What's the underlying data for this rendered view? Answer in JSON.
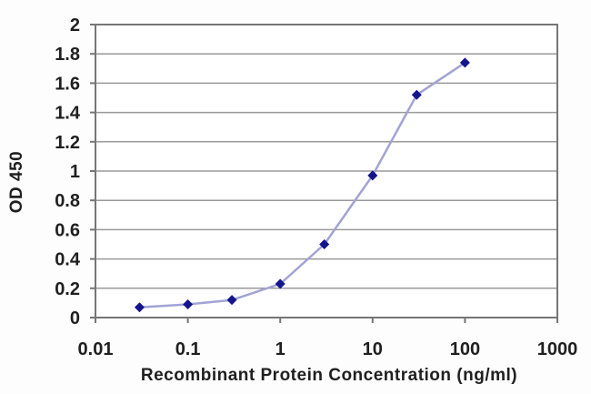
{
  "chart_data": {
    "type": "line",
    "xlabel": "Recombinant Protein Concentration (ng/ml)",
    "ylabel": "OD 450",
    "x_scale": "log",
    "y_scale": "linear",
    "x": [
      0.03,
      0.1,
      0.3,
      1,
      3,
      10,
      30,
      100
    ],
    "y": [
      0.07,
      0.09,
      0.12,
      0.23,
      0.5,
      0.97,
      1.52,
      1.74
    ],
    "xlim": [
      0.01,
      1000
    ],
    "ylim": [
      0,
      2
    ],
    "x_ticks": [
      0.01,
      0.1,
      1,
      10,
      100,
      1000
    ],
    "x_tick_labels": [
      "0.01",
      "0.1",
      "1",
      "10",
      "100",
      "1000"
    ],
    "y_ticks": [
      0,
      0.2,
      0.4,
      0.6,
      0.8,
      1,
      1.2,
      1.4,
      1.6,
      1.8,
      2
    ],
    "y_tick_labels": [
      "0",
      "0.2",
      "0.4",
      "0.6",
      "0.8",
      "1",
      "1.2",
      "1.4",
      "1.6",
      "1.8",
      "2"
    ],
    "grid": "horizontal",
    "legend": "none",
    "marker_shape": "diamond",
    "colors": {
      "line": "#a2a2d4",
      "marker": "#14148c",
      "gridline": "#9a9a9a",
      "axis_box": "#767676",
      "text": "#1f1f1f",
      "plot_background": "#ffffff"
    }
  }
}
